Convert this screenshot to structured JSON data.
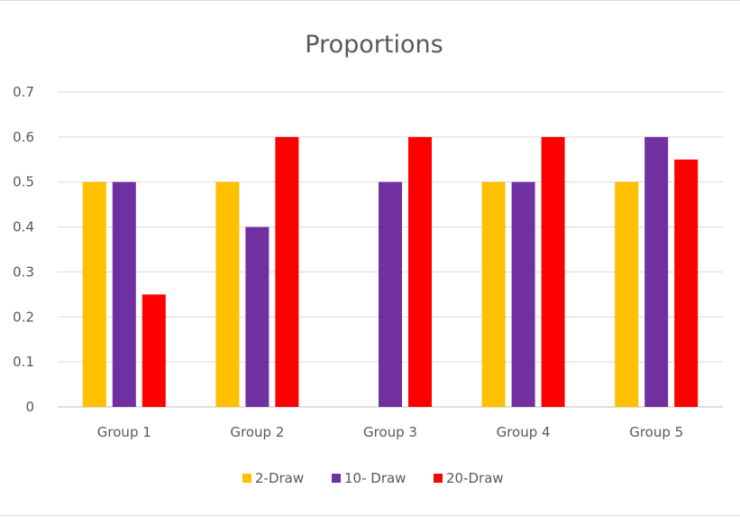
{
  "chart_data": {
    "type": "bar",
    "title": "Proportions",
    "xlabel": "",
    "ylabel": "",
    "categories": [
      "Group 1",
      "Group 2",
      "Group 3",
      "Group 4",
      "Group 5"
    ],
    "series": [
      {
        "name": "2-Draw",
        "color": "#FFC000",
        "values": [
          0.5,
          0.5,
          0,
          0.5,
          0.5
        ]
      },
      {
        "name": "10- Draw",
        "color": "#7030A0",
        "values": [
          0.5,
          0.4,
          0.5,
          0.5,
          0.6
        ]
      },
      {
        "name": "20-Draw",
        "color": "#FF0000",
        "values": [
          0.25,
          0.6,
          0.6,
          0.6,
          0.55
        ]
      }
    ],
    "ylim": [
      0,
      0.7
    ],
    "yticks": [
      "0",
      "0.1",
      "0.2",
      "0.3",
      "0.4",
      "0.5",
      "0.6",
      "0.7"
    ],
    "grid": true,
    "legend_position": "bottom"
  }
}
